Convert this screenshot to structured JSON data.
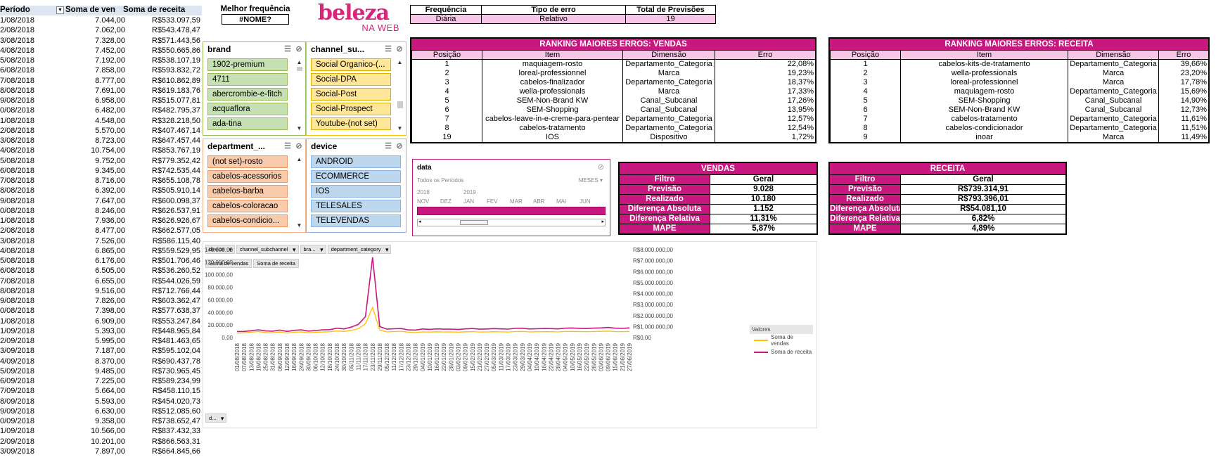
{
  "pivot": {
    "headers": [
      "Período",
      "Soma de ven",
      "Soma de receita"
    ],
    "rows": [
      [
        "1/08/2018",
        "7.044,00",
        "R$533.097,59"
      ],
      [
        "2/08/2018",
        "7.062,00",
        "R$543.478,47"
      ],
      [
        "3/08/2018",
        "7.328,00",
        "R$571.443,56"
      ],
      [
        "4/08/2018",
        "7.452,00",
        "R$550.665,86"
      ],
      [
        "5/08/2018",
        "7.192,00",
        "R$538.107,19"
      ],
      [
        "6/08/2018",
        "7.858,00",
        "R$593.832,72"
      ],
      [
        "7/08/2018",
        "8.777,00",
        "R$610.862,89"
      ],
      [
        "8/08/2018",
        "7.691,00",
        "R$619.183,76"
      ],
      [
        "9/08/2018",
        "6.958,00",
        "R$515.077,81"
      ],
      [
        "0/08/2018",
        "6.482,00",
        "R$482.795,37"
      ],
      [
        "1/08/2018",
        "4.548,00",
        "R$328.218,50"
      ],
      [
        "2/08/2018",
        "5.570,00",
        "R$407.467,14"
      ],
      [
        "3/08/2018",
        "8.723,00",
        "R$647.457,44"
      ],
      [
        "4/08/2018",
        "10.754,00",
        "R$853.767,19"
      ],
      [
        "5/08/2018",
        "9.752,00",
        "R$779.352,42"
      ],
      [
        "6/08/2018",
        "9.345,00",
        "R$742.535,44"
      ],
      [
        "7/08/2018",
        "8.716,00",
        "R$655.108,78"
      ],
      [
        "8/08/2018",
        "6.392,00",
        "R$505.910,14"
      ],
      [
        "9/08/2018",
        "7.647,00",
        "R$600.098,37"
      ],
      [
        "0/08/2018",
        "8.246,00",
        "R$626.537,91"
      ],
      [
        "1/08/2018",
        "7.936,00",
        "R$626.926,67"
      ],
      [
        "2/08/2018",
        "8.477,00",
        "R$662.577,05"
      ],
      [
        "3/08/2018",
        "7.526,00",
        "R$586.115,40"
      ],
      [
        "4/08/2018",
        "6.865,00",
        "R$559.529,95"
      ],
      [
        "5/08/2018",
        "6.176,00",
        "R$501.706,46"
      ],
      [
        "6/08/2018",
        "6.505,00",
        "R$536.260,52"
      ],
      [
        "7/08/2018",
        "6.655,00",
        "R$544.026,59"
      ],
      [
        "8/08/2018",
        "9.516,00",
        "R$712.766,44"
      ],
      [
        "9/08/2018",
        "7.826,00",
        "R$603.362,47"
      ],
      [
        "0/08/2018",
        "7.398,00",
        "R$577.638,37"
      ],
      [
        "1/08/2018",
        "6.909,00",
        "R$553.247,84"
      ],
      [
        "1/09/2018",
        "5.393,00",
        "R$448.965,84"
      ],
      [
        "2/09/2018",
        "5.995,00",
        "R$481.463,65"
      ],
      [
        "3/09/2018",
        "7.187,00",
        "R$595.102,04"
      ],
      [
        "4/09/2018",
        "8.370,00",
        "R$690.437,78"
      ],
      [
        "5/09/2018",
        "9.485,00",
        "R$730.965,45"
      ],
      [
        "6/09/2018",
        "7.225,00",
        "R$589.234,99"
      ],
      [
        "7/09/2018",
        "5.664,00",
        "R$458.110,15"
      ],
      [
        "8/09/2018",
        "5.593,00",
        "R$454.020,73"
      ],
      [
        "9/09/2018",
        "6.630,00",
        "R$512.085,60"
      ],
      [
        "0/09/2018",
        "9.358,00",
        "R$738.652,47"
      ],
      [
        "1/09/2018",
        "10.566,00",
        "R$837.432,33"
      ],
      [
        "2/09/2018",
        "10.201,00",
        "R$866.563,31"
      ],
      [
        "3/09/2018",
        "7.897,00",
        "R$664.845,66"
      ]
    ]
  },
  "melhor": {
    "title": "Melhor frequência",
    "value": "#NOME?"
  },
  "logo": {
    "line1": "beleza",
    "line2": "NA WEB"
  },
  "freq": {
    "headers": [
      "Frequência",
      "Tipo de erro",
      "Total de Previsões"
    ],
    "values": [
      "Diária",
      "Relativo",
      "19"
    ]
  },
  "rank_vendas": {
    "title": "RANKING MAIORES ERROS: VENDAS",
    "headers": [
      "Posição",
      "Item",
      "Dimensão",
      "Erro"
    ],
    "rows": [
      [
        "1",
        "maquiagem-rosto",
        "Departamento_Categoria",
        "22,08%"
      ],
      [
        "2",
        "loreal-professionnel",
        "Marca",
        "19,23%"
      ],
      [
        "3",
        "cabelos-finalizador",
        "Departamento_Categoria",
        "18,37%"
      ],
      [
        "4",
        "wella-professionals",
        "Marca",
        "17,33%"
      ],
      [
        "5",
        "SEM-Non-Brand KW",
        "Canal_Subcanal",
        "17,26%"
      ],
      [
        "6",
        "SEM-Shopping",
        "Canal_Subcanal",
        "13,95%"
      ],
      [
        "7",
        "cabelos-leave-in-e-creme-para-pentear",
        "Departamento_Categoria",
        "12,57%"
      ],
      [
        "8",
        "cabelos-tratamento",
        "Departamento_Categoria",
        "12,54%"
      ],
      [
        "19",
        "IOS",
        "Dispositivo",
        "1,72%"
      ]
    ]
  },
  "rank_receita": {
    "title": "RANKING MAIORES ERROS: RECEITA",
    "headers": [
      "Posição",
      "Item",
      "Dimensão",
      "Erro"
    ],
    "rows": [
      [
        "1",
        "cabelos-kits-de-tratamento",
        "Departamento_Categoria",
        "39,66%"
      ],
      [
        "2",
        "wella-professionals",
        "Marca",
        "23,20%"
      ],
      [
        "3",
        "loreal-professionnel",
        "Marca",
        "17,78%"
      ],
      [
        "4",
        "maquiagem-rosto",
        "Departamento_Categoria",
        "15,69%"
      ],
      [
        "5",
        "SEM-Shopping",
        "Canal_Subcanal",
        "14,90%"
      ],
      [
        "6",
        "SEM-Non-Brand KW",
        "Canal_Subcanal",
        "12,73%"
      ],
      [
        "7",
        "cabelos-tratamento",
        "Departamento_Categoria",
        "11,61%"
      ],
      [
        "8",
        "cabelos-condicionador",
        "Departamento_Categoria",
        "11,51%"
      ],
      [
        "9",
        "inoar",
        "Marca",
        "11,49%"
      ]
    ]
  },
  "slicers": {
    "brand": {
      "title": "brand",
      "items": [
        "1902-premium",
        "4711",
        "abercrombie-e-fitch",
        "acquaflora",
        "ada-tina"
      ]
    },
    "channel": {
      "title": "channel_su...",
      "items": [
        "Social Organico-(...",
        "Social-DPA",
        "Social-Post",
        "Social-Prospect",
        "Youtube-(not set)"
      ]
    },
    "department": {
      "title": "department_...",
      "items": [
        "(not set)-rosto",
        "cabelos-acessorios",
        "cabelos-barba",
        "cabelos-coloracao",
        "cabelos-condicio..."
      ]
    },
    "device": {
      "title": "device",
      "items": [
        "ANDROID",
        "ECOMMERCE",
        "IOS",
        "TELESALES",
        "TELEVENDAS"
      ]
    }
  },
  "timeline": {
    "title": "data",
    "subtitle": "Todos os Períodos",
    "level": "MESES",
    "years": [
      "2018",
      "2019"
    ],
    "months": [
      "NOV",
      "DEZ",
      "JAN",
      "FEV",
      "MAR",
      "ABR",
      "MAI",
      "JUN"
    ]
  },
  "sum_vendas": {
    "title": "VENDAS",
    "rows": [
      [
        "Filtro",
        "Geral"
      ],
      [
        "Previsão",
        "9.028"
      ],
      [
        "Realizado",
        "10.180"
      ],
      [
        "Diferença Absoluta",
        "1.152"
      ],
      [
        "Diferença Relativa",
        "11,31%"
      ],
      [
        "MAPE",
        "5,87%"
      ]
    ]
  },
  "sum_receita": {
    "title": "RECEITA",
    "rows": [
      [
        "Filtro",
        "Geral"
      ],
      [
        "Previsão",
        "R$739.314,91"
      ],
      [
        "Realizado",
        "R$793.396,01"
      ],
      [
        "Diferença Absoluta",
        "R$54.081,10"
      ],
      [
        "Diferença Relativa",
        "6,82%"
      ],
      [
        "MAPE",
        "4,89%"
      ]
    ]
  },
  "chart_filters": [
    "device",
    "channel_subchannel",
    "bra...",
    "department_category"
  ],
  "chart_values": [
    "Soma de vendas",
    "Soma de receita"
  ],
  "chart_date_btn": "d...",
  "legend": {
    "title": "Valores",
    "items": [
      "Soma de vendas",
      "Soma de receita"
    ]
  },
  "colors": {
    "vendas": "#ffc000",
    "receita": "#c8177f",
    "accent": "#c8177f"
  },
  "chart_data": {
    "type": "line",
    "y_left": {
      "ticks": [
        "0,00",
        "20.000,00",
        "40.000,00",
        "60.000,00",
        "80.000,00",
        "100.000,00",
        "120.000,00",
        "140.000,00"
      ],
      "ylim": [
        0,
        140000
      ]
    },
    "y_right": {
      "ticks": [
        "R$0,00",
        "R$1.000.000,00",
        "R$2.000.000,00",
        "R$3.000.000,00",
        "R$4.000.000,00",
        "R$5.000.000,00",
        "R$6.000.000,00",
        "R$7.000.000,00",
        "R$8.000.000,00"
      ],
      "ylim": [
        0,
        8000000
      ]
    },
    "x_ticks": [
      "01/08/2018",
      "07/08/2018",
      "13/08/2018",
      "19/08/2018",
      "25/08/2018",
      "31/08/2018",
      "06/09/2018",
      "12/09/2018",
      "18/09/2018",
      "24/09/2018",
      "30/09/2018",
      "06/10/2018",
      "12/10/2018",
      "18/10/2018",
      "24/10/2018",
      "30/10/2018",
      "05/11/2018",
      "11/11/2018",
      "17/11/2018",
      "23/11/2018",
      "29/11/2018",
      "05/12/2018",
      "11/12/2018",
      "17/12/2018",
      "23/12/2018",
      "29/12/2018",
      "04/01/2019",
      "10/01/2019",
      "16/01/2019",
      "22/01/2019",
      "28/01/2019",
      "03/02/2019",
      "09/02/2019",
      "15/02/2019",
      "21/02/2019",
      "27/02/2019",
      "05/03/2019",
      "11/03/2019",
      "17/03/2019",
      "23/03/2019",
      "29/03/2019",
      "04/04/2019",
      "10/04/2019",
      "16/04/2019",
      "22/04/2019",
      "28/04/2019",
      "04/05/2019",
      "10/05/2019",
      "16/05/2019",
      "22/05/2019",
      "28/05/2019",
      "03/06/2019",
      "09/06/2019",
      "15/06/2019",
      "21/06/2019",
      "27/06/2019"
    ],
    "series": [
      {
        "name": "Soma de vendas",
        "axis": "left",
        "values": [
          7000,
          7500,
          8500,
          9500,
          8000,
          7500,
          8800,
          7200,
          8500,
          9000,
          7600,
          8200,
          8900,
          9200,
          10500,
          9800,
          11500,
          14000,
          22000,
          48000,
          12000,
          9000,
          9500,
          10000,
          8500,
          8000,
          9000,
          8700,
          9200,
          8800,
          9000,
          8600,
          9200,
          9400,
          8800,
          9000,
          9300,
          9100,
          8900,
          9500,
          9700,
          9000,
          9200,
          9400,
          9300,
          9000,
          9600,
          9800,
          9500,
          9300,
          9600,
          9900,
          10200,
          9500,
          9300,
          9800
        ]
      },
      {
        "name": "Soma de receita",
        "axis": "right",
        "values": [
          550000,
          560000,
          620000,
          700000,
          600000,
          580000,
          680000,
          560000,
          650000,
          700000,
          590000,
          640000,
          700000,
          720000,
          850000,
          780000,
          950000,
          1200000,
          1900000,
          7300000,
          1000000,
          760000,
          800000,
          820000,
          700000,
          680000,
          780000,
          740000,
          790000,
          760000,
          770000,
          730000,
          790000,
          820000,
          760000,
          780000,
          810000,
          790000,
          770000,
          830000,
          850000,
          780000,
          800000,
          820000,
          810000,
          790000,
          850000,
          870000,
          840000,
          820000,
          860000,
          880000,
          920000,
          850000,
          830000,
          880000
        ]
      }
    ]
  }
}
